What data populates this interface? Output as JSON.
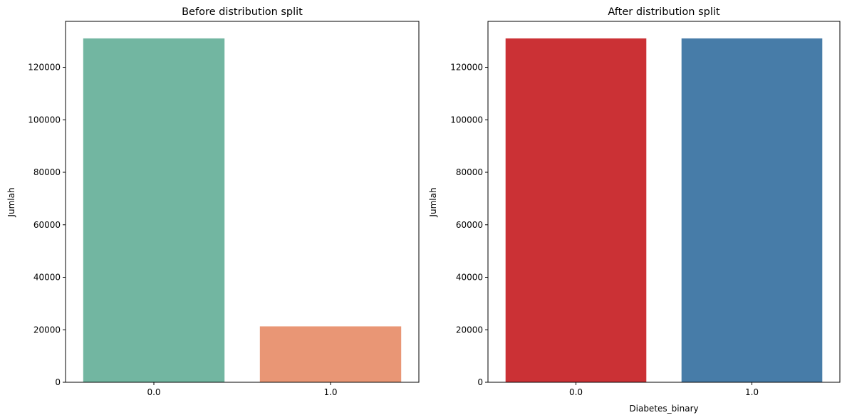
{
  "chart_data": [
    {
      "type": "bar",
      "title": "Before distribution split",
      "xlabel": "",
      "ylabel": "Jumlah",
      "categories": [
        "0.0",
        "1.0"
      ],
      "values": [
        131000,
        21300
      ],
      "colors": [
        "#72b6a1",
        "#e99675"
      ],
      "ylim": [
        0,
        137500
      ],
      "yticks": [
        0,
        20000,
        40000,
        60000,
        80000,
        100000,
        120000
      ],
      "grid": false
    },
    {
      "type": "bar",
      "title": "After distribution split",
      "xlabel": "Diabetes_binary",
      "ylabel": "Jumlah",
      "categories": [
        "0.0",
        "1.0"
      ],
      "values": [
        131000,
        131000
      ],
      "colors": [
        "#cb3135",
        "#477ca8"
      ],
      "ylim": [
        0,
        137500
      ],
      "yticks": [
        0,
        20000,
        40000,
        60000,
        80000,
        100000,
        120000
      ],
      "grid": false
    }
  ]
}
